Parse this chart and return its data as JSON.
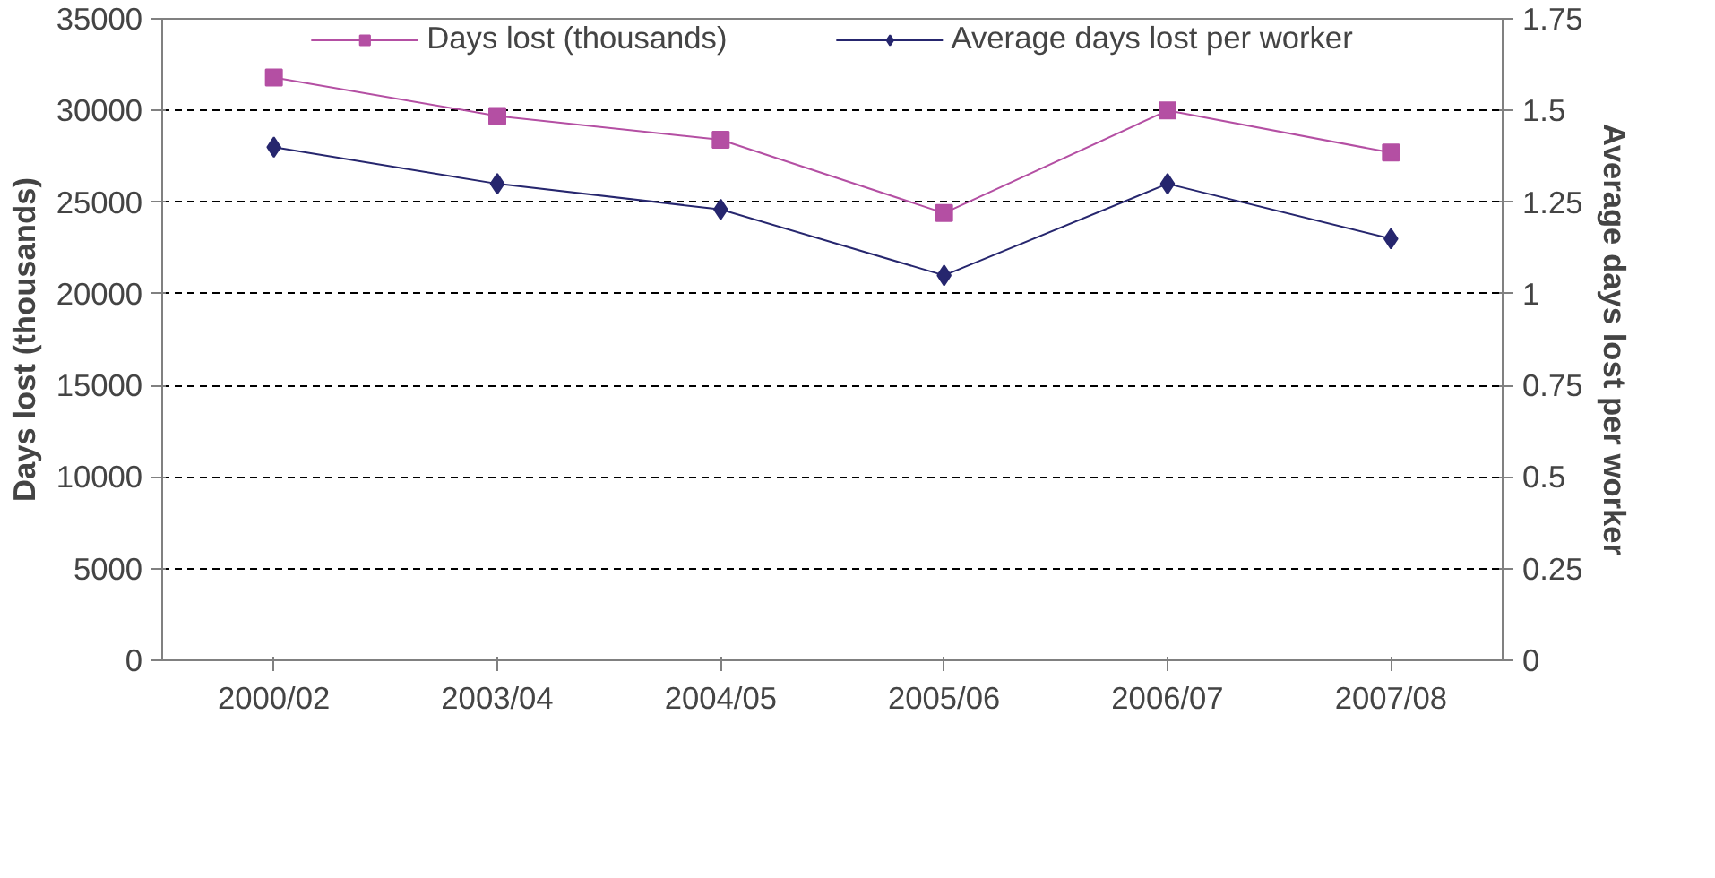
{
  "chart_data": {
    "type": "line",
    "ylabel": "Days lost (thousands)",
    "y2label": "Average days lost per worker",
    "categories": [
      "2000/02",
      "2003/04",
      "2004/05",
      "2005/06",
      "2006/07",
      "2007/08"
    ],
    "series": [
      {
        "name": "Days lost (thousands)",
        "color": "#b44fa3",
        "marker": "square",
        "values": [
          31800,
          29700,
          28400,
          24400,
          30000,
          27700
        ]
      },
      {
        "name": "Average days lost per worker",
        "color": "#26266e",
        "marker": "diamond",
        "axis": "y2",
        "values": [
          1.4,
          1.3,
          1.23,
          1.05,
          1.3,
          1.15
        ]
      }
    ],
    "ylim": [
      0,
      35000
    ],
    "yticks": [
      0,
      5000,
      10000,
      15000,
      20000,
      25000,
      30000,
      35000
    ],
    "y2lim": [
      0,
      1.75
    ],
    "y2ticks": [
      0,
      0.25,
      0.5,
      0.75,
      1,
      1.25,
      1.5,
      1.75
    ],
    "grid": "y",
    "legend": "top",
    "line_style": "solid"
  }
}
